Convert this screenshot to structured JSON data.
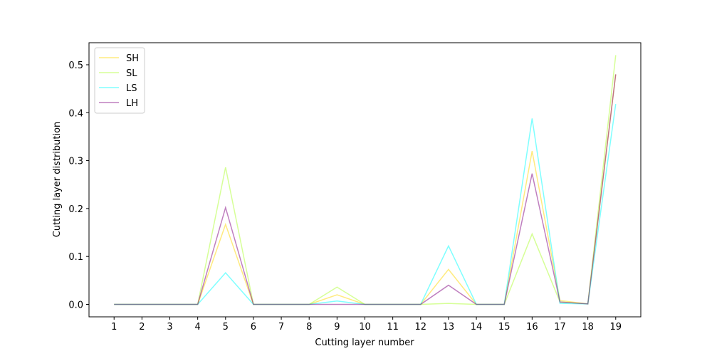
{
  "chart_data": {
    "type": "line",
    "x_label": "Cutting layer number",
    "y_label": "Cutting layer distribution",
    "x": [
      1,
      2,
      3,
      4,
      5,
      6,
      7,
      8,
      9,
      10,
      11,
      12,
      13,
      14,
      15,
      16,
      17,
      18,
      19
    ],
    "series": [
      {
        "name": "SH",
        "color": "#ffd700",
        "values": [
          0,
          0,
          0,
          0,
          0.167,
          0,
          0,
          0,
          0.02,
          0,
          0,
          0,
          0.073,
          0,
          0,
          0.32,
          0.008,
          0.001,
          0.48
        ]
      },
      {
        "name": "SL",
        "color": "#adff2f",
        "values": [
          0,
          0,
          0,
          0,
          0.286,
          0,
          0,
          0,
          0.036,
          0,
          0,
          0,
          0.002,
          0,
          0,
          0.147,
          0.005,
          0.001,
          0.52
        ]
      },
      {
        "name": "LS",
        "color": "#00ffff",
        "values": [
          0,
          0,
          0,
          0,
          0.066,
          0,
          0,
          0,
          0.007,
          0,
          0,
          0,
          0.122,
          0,
          0,
          0.388,
          0.002,
          0.001,
          0.418
        ]
      },
      {
        "name": "LH",
        "color": "#800080",
        "values": [
          0,
          0,
          0,
          0,
          0.202,
          0,
          0,
          0,
          0,
          0,
          0,
          0,
          0.04,
          0,
          0,
          0.273,
          0.005,
          0.001,
          0.48
        ]
      }
    ],
    "alpha": 0.5,
    "xlim": [
      0.1,
      19.9
    ],
    "xticks": [
      1,
      2,
      3,
      4,
      5,
      6,
      7,
      8,
      9,
      10,
      11,
      12,
      13,
      14,
      15,
      16,
      17,
      18,
      19
    ],
    "ylim": [
      -0.026,
      0.546
    ],
    "yticks": [
      {
        "value": 0,
        "label": "0.0"
      },
      0.1,
      0.2,
      0.3,
      0.4,
      0.5
    ],
    "legend": "upper left"
  }
}
